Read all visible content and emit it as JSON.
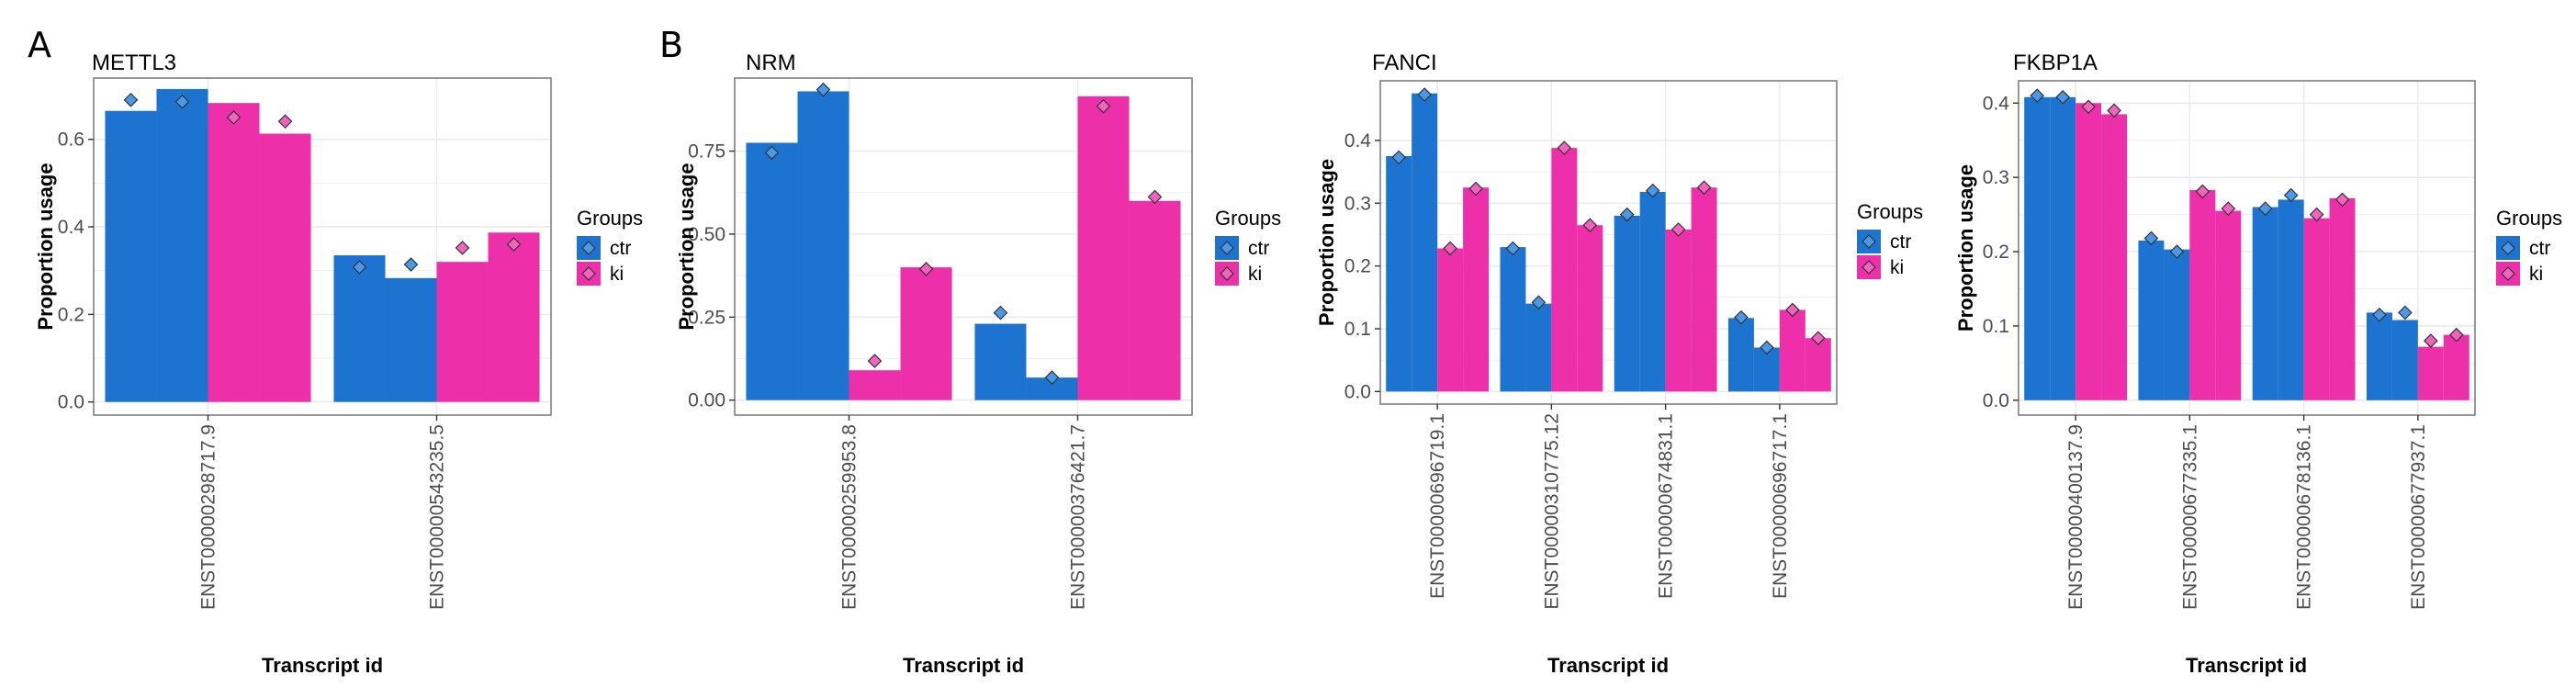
{
  "panel_labels": [
    "A",
    "B"
  ],
  "chart_data": [
    {
      "type": "bar",
      "title": "METTL3",
      "xlabel": "Transcript id",
      "ylabel": "Proportion usage",
      "ylim": [
        -0.03,
        0.74
      ],
      "yticks": [
        0.0,
        0.2,
        0.4,
        0.6
      ],
      "ytick_labels": [
        "0.0",
        "0.2",
        "0.4",
        "0.6"
      ],
      "categories": [
        "ENST00000298717.9",
        "ENST00000543235.5"
      ],
      "series": [
        {
          "name": "ctr",
          "values": [
            [
              0.665,
              0.715
            ],
            [
              0.335,
              0.283
            ]
          ],
          "points": [
            [
              0.69,
              0.686
            ],
            [
              0.308,
              0.314
            ]
          ]
        },
        {
          "name": "ki",
          "values": [
            [
              0.683,
              0.613
            ],
            [
              0.32,
              0.387
            ]
          ],
          "points": [
            [
              0.65,
              0.641
            ],
            [
              0.352,
              0.36
            ]
          ]
        }
      ],
      "grid": true
    },
    {
      "type": "bar",
      "title": "NRM",
      "xlabel": "Transcript id",
      "ylabel": "Proportion usage",
      "ylim": [
        -0.045,
        0.97
      ],
      "yticks": [
        0.0,
        0.25,
        0.5,
        0.75
      ],
      "ytick_labels": [
        "0.00",
        "0.25",
        "0.50",
        "0.75"
      ],
      "categories": [
        "ENST00000259953.8",
        "ENST00000376421.7"
      ],
      "series": [
        {
          "name": "ctr",
          "values": [
            [
              0.775,
              0.93
            ],
            [
              0.23,
              0.068
            ]
          ],
          "points": [
            [
              0.745,
              0.935
            ],
            [
              0.263,
              0.068
            ]
          ]
        },
        {
          "name": "ki",
          "values": [
            [
              0.09,
              0.4
            ],
            [
              0.915,
              0.6
            ]
          ],
          "points": [
            [
              0.118,
              0.395
            ],
            [
              0.885,
              0.612
            ]
          ]
        }
      ],
      "grid": true
    },
    {
      "type": "bar",
      "title": "FANCI",
      "xlabel": "Transcript id",
      "ylabel": "Proportion usage",
      "ylim": [
        -0.02,
        0.495
      ],
      "yticks": [
        0.0,
        0.1,
        0.2,
        0.3,
        0.4
      ],
      "ytick_labels": [
        "0.0",
        "0.1",
        "0.2",
        "0.3",
        "0.4"
      ],
      "categories": [
        "ENST00000696719.1",
        "ENST00000310775.12",
        "ENST00000674831.1",
        "ENST00000696717.1"
      ],
      "series": [
        {
          "name": "ctr",
          "values": [
            [
              0.375,
              0.475
            ],
            [
              0.23,
              0.14
            ],
            [
              0.28,
              0.318
            ],
            [
              0.117,
              0.07
            ]
          ],
          "points": [
            [
              0.373,
              0.473
            ],
            [
              0.228,
              0.142
            ],
            [
              0.282,
              0.32
            ],
            [
              0.118,
              0.07
            ]
          ]
        },
        {
          "name": "ki",
          "values": [
            [
              0.228,
              0.325
            ],
            [
              0.388,
              0.265
            ],
            [
              0.258,
              0.325
            ],
            [
              0.13,
              0.085
            ]
          ],
          "points": [
            [
              0.228,
              0.323
            ],
            [
              0.388,
              0.265
            ],
            [
              0.258,
              0.325
            ],
            [
              0.13,
              0.085
            ]
          ]
        }
      ],
      "grid": true
    },
    {
      "type": "bar",
      "title": "FKBP1A",
      "xlabel": "Transcript id",
      "ylabel": "Proportion usage",
      "ylim": [
        -0.02,
        0.43
      ],
      "yticks": [
        0.0,
        0.1,
        0.2,
        0.3,
        0.4
      ],
      "ytick_labels": [
        "0.0",
        "0.1",
        "0.2",
        "0.3",
        "0.4"
      ],
      "categories": [
        "ENST00000400137.9",
        "ENST00000677335.1",
        "ENST00000678136.1",
        "ENST00000677937.1"
      ],
      "series": [
        {
          "name": "ctr",
          "values": [
            [
              0.408,
              0.408
            ],
            [
              0.215,
              0.203
            ],
            [
              0.26,
              0.27
            ],
            [
              0.118,
              0.108
            ]
          ],
          "points": [
            [
              0.41,
              0.408
            ],
            [
              0.218,
              0.2
            ],
            [
              0.258,
              0.276
            ],
            [
              0.115,
              0.118
            ]
          ]
        },
        {
          "name": "ki",
          "values": [
            [
              0.4,
              0.385
            ],
            [
              0.283,
              0.255
            ],
            [
              0.245,
              0.272
            ],
            [
              0.072,
              0.088
            ]
          ],
          "points": [
            [
              0.395,
              0.39
            ],
            [
              0.281,
              0.258
            ],
            [
              0.25,
              0.27
            ],
            [
              0.08,
              0.088
            ]
          ]
        }
      ],
      "grid": true
    }
  ],
  "legend": {
    "title": "Groups",
    "items": [
      {
        "label": "ctr",
        "color": "#1c74d0"
      },
      {
        "label": "ki",
        "color": "#ee2faa"
      }
    ]
  },
  "colors": {
    "ctr": "#1c74d0",
    "ki": "#ee2faa",
    "ctr_point": "#4a98e8",
    "ki_point": "#f263c0",
    "panel_border": "#7f7f7f",
    "grid": "#ebebeb"
  }
}
